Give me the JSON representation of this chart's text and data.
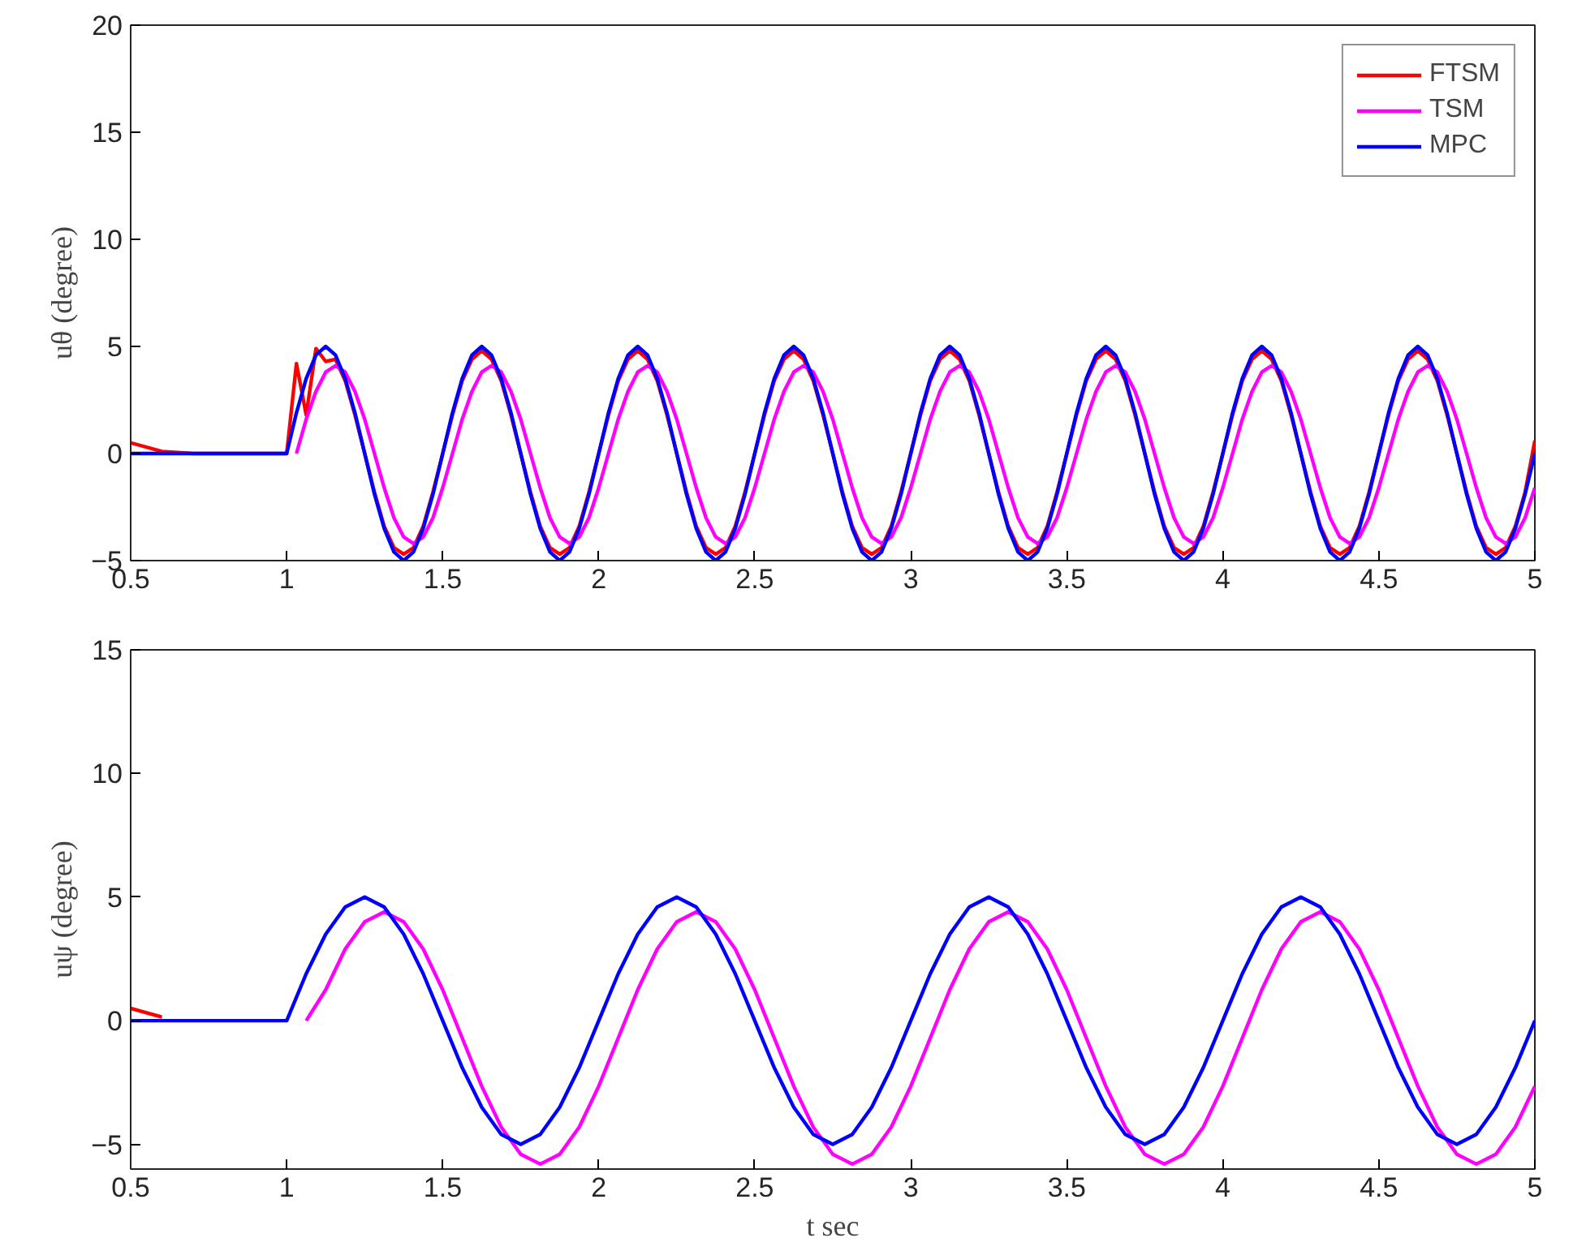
{
  "chart_data": [
    {
      "type": "line",
      "ylabel": "uθ (degree)",
      "xlim": [
        0.5,
        5
      ],
      "ylim": [
        -5,
        20
      ],
      "xticks": [
        0.5,
        1,
        1.5,
        2,
        2.5,
        3,
        3.5,
        4,
        4.5,
        5
      ],
      "yticks": [
        -5,
        0,
        5,
        10,
        15,
        20
      ],
      "grid": false,
      "legend": "top right",
      "line_style": "solid",
      "marker": "none",
      "x": [
        0.5,
        0.6,
        0.7,
        0.8,
        0.9,
        1,
        1.03125,
        1.0625,
        1.09375,
        1.125,
        1.15625,
        1.1875,
        1.21875,
        1.25,
        1.28125,
        1.3125,
        1.34375,
        1.375,
        1.40625,
        1.4375,
        1.46875,
        1.5,
        1.53125,
        1.5625,
        1.59375,
        1.625,
        1.65625,
        1.6875,
        1.71875,
        1.75,
        1.78125,
        1.8125,
        1.84375,
        1.875,
        1.90625,
        1.9375,
        1.96875,
        2,
        2.03125,
        2.0625,
        2.09375,
        2.125,
        2.15625,
        2.1875,
        2.21875,
        2.25,
        2.28125,
        2.3125,
        2.34375,
        2.375,
        2.40625,
        2.4375,
        2.46875,
        2.5,
        2.53125,
        2.5625,
        2.59375,
        2.625,
        2.65625,
        2.6875,
        2.71875,
        2.75,
        2.78125,
        2.8125,
        2.84375,
        2.875,
        2.90625,
        2.9375,
        2.96875,
        3,
        3.03125,
        3.0625,
        3.09375,
        3.125,
        3.15625,
        3.1875,
        3.21875,
        3.25,
        3.28125,
        3.3125,
        3.34375,
        3.375,
        3.40625,
        3.4375,
        3.46875,
        3.5,
        3.53125,
        3.5625,
        3.59375,
        3.625,
        3.65625,
        3.6875,
        3.71875,
        3.75,
        3.78125,
        3.8125,
        3.84375,
        3.875,
        3.90625,
        3.9375,
        3.96875,
        4,
        4.03125,
        4.0625,
        4.09375,
        4.125,
        4.15625,
        4.1875,
        4.21875,
        4.25,
        4.28125,
        4.3125,
        4.34375,
        4.375,
        4.40625,
        4.4375,
        4.46875,
        4.5,
        4.53125,
        4.5625,
        4.59375,
        4.625,
        4.65625,
        4.6875,
        4.71875,
        4.75,
        4.78125,
        4.8125,
        4.84375,
        4.875,
        4.90625,
        4.9375,
        4.96875,
        5
      ],
      "series": [
        {
          "name": "FTSM",
          "color": "#ff0000",
          "values": [
            0.5,
            0.1,
            0,
            0,
            0,
            0,
            4.2,
            1.8,
            4.9,
            4.3,
            4.4,
            3.4,
            1.8,
            0,
            -1.8,
            -3.4,
            -4.4,
            -4.7,
            -4.4,
            -3.4,
            -1.8,
            0,
            1.8,
            3.4,
            4.4,
            4.8,
            4.4,
            3.4,
            1.8,
            0,
            -1.8,
            -3.4,
            -4.4,
            -4.7,
            -4.4,
            -3.4,
            -1.8,
            0,
            1.8,
            3.4,
            4.4,
            4.8,
            4.4,
            3.4,
            1.8,
            0,
            -1.8,
            -3.4,
            -4.4,
            -4.7,
            -4.4,
            -3.4,
            -1.8,
            0,
            1.8,
            3.4,
            4.4,
            4.8,
            4.4,
            3.4,
            1.8,
            0,
            -1.8,
            -3.4,
            -4.4,
            -4.7,
            -4.4,
            -3.4,
            -1.8,
            0,
            1.8,
            3.4,
            4.4,
            4.8,
            4.4,
            3.4,
            1.8,
            0,
            -1.8,
            -3.4,
            -4.4,
            -4.7,
            -4.4,
            -3.4,
            -1.8,
            0,
            1.8,
            3.4,
            4.4,
            4.8,
            4.4,
            3.4,
            1.8,
            0,
            -1.8,
            -3.4,
            -4.4,
            -4.7,
            -4.4,
            -3.4,
            -1.8,
            0,
            1.8,
            3.4,
            4.4,
            4.8,
            4.4,
            3.4,
            1.8,
            0,
            -1.8,
            -3.4,
            -4.4,
            -4.7,
            -4.4,
            -3.4,
            -1.8,
            0,
            1.8,
            3.4,
            4.4,
            4.8,
            4.4,
            3.4,
            1.8,
            0,
            -1.8,
            -3.4,
            -4.4,
            -4.7,
            -4.4,
            -3.4,
            -1.8,
            0.6
          ]
        },
        {
          "name": "TSM",
          "color": "#ff00ff",
          "values": [
            null,
            null,
            null,
            null,
            null,
            null,
            0,
            1.6,
            2.9,
            3.8,
            4.1,
            3.8,
            2.9,
            1.6,
            0,
            -1.6,
            -3.0,
            -3.9,
            -4.2,
            -3.9,
            -3.0,
            -1.6,
            0,
            1.6,
            2.9,
            3.8,
            4.1,
            3.8,
            2.9,
            1.6,
            0,
            -1.6,
            -3.0,
            -3.9,
            -4.2,
            -3.9,
            -3.0,
            -1.6,
            0,
            1.6,
            2.9,
            3.8,
            4.1,
            3.8,
            2.9,
            1.6,
            0,
            -1.6,
            -3.0,
            -3.9,
            -4.2,
            -3.9,
            -3.0,
            -1.6,
            0,
            1.6,
            2.9,
            3.8,
            4.1,
            3.8,
            2.9,
            1.6,
            0,
            -1.6,
            -3.0,
            -3.9,
            -4.2,
            -3.9,
            -3.0,
            -1.6,
            0,
            1.6,
            2.9,
            3.8,
            4.1,
            3.8,
            2.9,
            1.6,
            0,
            -1.6,
            -3.0,
            -3.9,
            -4.2,
            -3.9,
            -3.0,
            -1.6,
            0,
            1.6,
            2.9,
            3.8,
            4.1,
            3.8,
            2.9,
            1.6,
            0,
            -1.6,
            -3.0,
            -3.9,
            -4.2,
            -3.9,
            -3.0,
            -1.6,
            0,
            1.6,
            2.9,
            3.8,
            4.1,
            3.8,
            2.9,
            1.6,
            0,
            -1.6,
            -3.0,
            -3.9,
            -4.2,
            -3.9,
            -3.0,
            -1.6,
            0,
            1.6,
            2.9,
            3.8,
            4.1,
            3.8,
            2.9,
            1.6,
            0,
            -1.6,
            -3.0,
            -3.9,
            -4.2,
            -3.9,
            -3.0,
            -1.6
          ]
        },
        {
          "name": "MPC",
          "color": "#0000ff",
          "values": [
            0,
            0,
            0,
            0,
            0,
            0,
            1.9,
            3.5,
            4.6,
            5,
            4.6,
            3.5,
            1.9,
            0,
            -1.9,
            -3.5,
            -4.6,
            -5,
            -4.6,
            -3.5,
            -1.9,
            0,
            1.9,
            3.5,
            4.6,
            5,
            4.6,
            3.5,
            1.9,
            0,
            -1.9,
            -3.5,
            -4.6,
            -5,
            -4.6,
            -3.5,
            -1.9,
            0,
            1.9,
            3.5,
            4.6,
            5,
            4.6,
            3.5,
            1.9,
            0,
            -1.9,
            -3.5,
            -4.6,
            -5,
            -4.6,
            -3.5,
            -1.9,
            0,
            1.9,
            3.5,
            4.6,
            5,
            4.6,
            3.5,
            1.9,
            0,
            -1.9,
            -3.5,
            -4.6,
            -5,
            -4.6,
            -3.5,
            -1.9,
            0,
            1.9,
            3.5,
            4.6,
            5,
            4.6,
            3.5,
            1.9,
            0,
            -1.9,
            -3.5,
            -4.6,
            -5,
            -4.6,
            -3.5,
            -1.9,
            0,
            1.9,
            3.5,
            4.6,
            5,
            4.6,
            3.5,
            1.9,
            0,
            -1.9,
            -3.5,
            -4.6,
            -5,
            -4.6,
            -3.5,
            -1.9,
            0,
            1.9,
            3.5,
            4.6,
            5,
            4.6,
            3.5,
            1.9,
            0,
            -1.9,
            -3.5,
            -4.6,
            -5,
            -4.6,
            -3.5,
            -1.9,
            0,
            1.9,
            3.5,
            4.6,
            5,
            4.6,
            3.5,
            1.9,
            0,
            -1.9,
            -3.5,
            -4.6,
            -5,
            -4.6,
            -3.5,
            -1.9,
            0
          ]
        }
      ]
    },
    {
      "type": "line",
      "xlabel": "t sec",
      "ylabel": "uψ (degree)",
      "xlim": [
        0.5,
        5
      ],
      "ylim": [
        -6,
        15
      ],
      "xticks": [
        0.5,
        1,
        1.5,
        2,
        2.5,
        3,
        3.5,
        4,
        4.5,
        5
      ],
      "yticks": [
        -5,
        0,
        5,
        10,
        15
      ],
      "grid": false,
      "line_style": "solid",
      "marker": "none",
      "x": [
        0.5,
        0.6,
        0.7,
        0.8,
        0.9,
        1,
        1.0625,
        1.125,
        1.1875,
        1.25,
        1.3125,
        1.375,
        1.4375,
        1.5,
        1.5625,
        1.625,
        1.6875,
        1.75,
        1.8125,
        1.875,
        1.9375,
        2,
        2.0625,
        2.125,
        2.1875,
        2.25,
        2.3125,
        2.375,
        2.4375,
        2.5,
        2.5625,
        2.625,
        2.6875,
        2.75,
        2.8125,
        2.875,
        2.9375,
        3,
        3.0625,
        3.125,
        3.1875,
        3.25,
        3.3125,
        3.375,
        3.4375,
        3.5,
        3.5625,
        3.625,
        3.6875,
        3.75,
        3.8125,
        3.875,
        3.9375,
        4,
        4.0625,
        4.125,
        4.1875,
        4.25,
        4.3125,
        4.375,
        4.4375,
        4.5,
        4.5625,
        4.625,
        4.6875,
        4.75,
        4.8125,
        4.875,
        4.9375,
        5
      ],
      "series": [
        {
          "color": "#ff0000",
          "x": [
            0.5,
            0.6
          ],
          "values": [
            0.5,
            0.15
          ]
        },
        {
          "color": "#ff00ff",
          "values": [
            null,
            null,
            null,
            null,
            null,
            null,
            0,
            1.25,
            2.9,
            4.0,
            4.4,
            4.0,
            2.9,
            1.25,
            -0.7,
            -2.65,
            -4.3,
            -5.4,
            -5.8,
            -5.4,
            -4.3,
            -2.65,
            -0.7,
            1.25,
            2.9,
            4.0,
            4.4,
            4.0,
            2.9,
            1.25,
            -0.7,
            -2.65,
            -4.3,
            -5.4,
            -5.8,
            -5.4,
            -4.3,
            -2.65,
            -0.7,
            1.25,
            2.9,
            4.0,
            4.4,
            4.0,
            2.9,
            1.25,
            -0.7,
            -2.65,
            -4.3,
            -5.4,
            -5.8,
            -5.4,
            -4.3,
            -2.65,
            -0.7,
            1.25,
            2.9,
            4.0,
            4.4,
            4.0,
            2.9,
            1.25,
            -0.7,
            -2.65,
            -4.3,
            -5.4,
            -5.8,
            -5.4,
            -4.3,
            -2.65
          ]
        },
        {
          "color": "#0000ff",
          "values": [
            0,
            0,
            0,
            0,
            0,
            0,
            1.9,
            3.5,
            4.6,
            5,
            4.6,
            3.5,
            1.9,
            0,
            -1.9,
            -3.5,
            -4.6,
            -5,
            -4.6,
            -3.5,
            -1.9,
            0,
            1.9,
            3.5,
            4.6,
            5,
            4.6,
            3.5,
            1.9,
            0,
            -1.9,
            -3.5,
            -4.6,
            -5,
            -4.6,
            -3.5,
            -1.9,
            0,
            1.9,
            3.5,
            4.6,
            5,
            4.6,
            3.5,
            1.9,
            0,
            -1.9,
            -3.5,
            -4.6,
            -5,
            -4.6,
            -3.5,
            -1.9,
            0,
            1.9,
            3.5,
            4.6,
            5,
            4.6,
            3.5,
            1.9,
            0,
            -1.9,
            -3.5,
            -4.6,
            -5,
            -4.6,
            -3.5,
            -1.9,
            0
          ]
        }
      ]
    }
  ]
}
